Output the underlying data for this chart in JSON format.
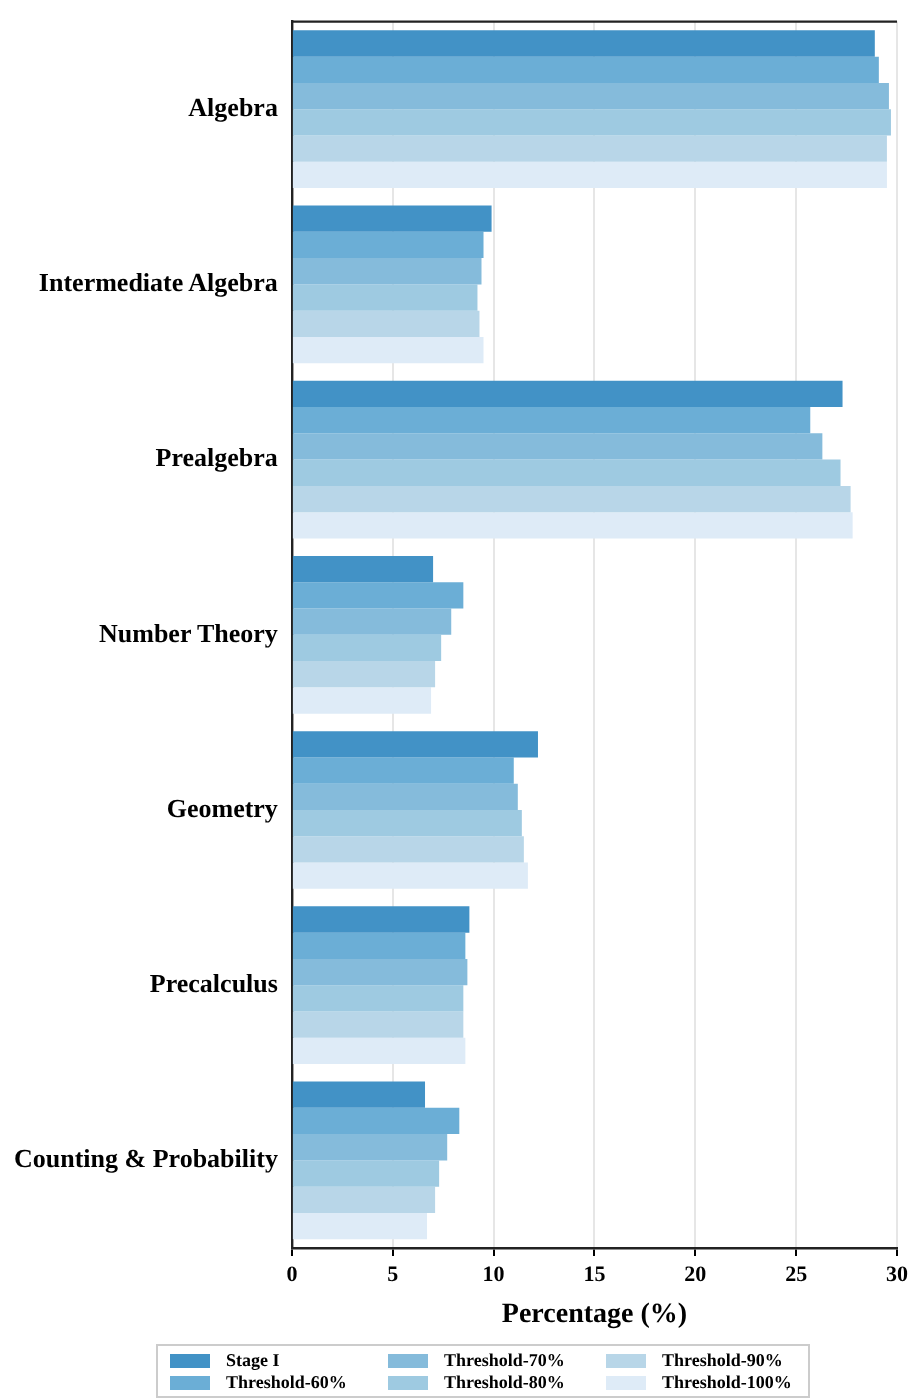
{
  "chart_data": {
    "type": "bar",
    "orientation": "horizontal",
    "xlabel": "Percentage (%)",
    "categories": [
      "Algebra",
      "Intermediate Algebra",
      "Prealgebra",
      "Number Theory",
      "Geometry",
      "Precalculus",
      "Counting & Probability"
    ],
    "series": [
      {
        "name": "Stage I",
        "color": "#4292c6",
        "values": [
          28.9,
          9.9,
          27.3,
          7.0,
          12.2,
          8.8,
          6.6
        ]
      },
      {
        "name": "Threshold-60%",
        "color": "#6baed6",
        "values": [
          29.1,
          9.5,
          25.7,
          8.5,
          11.0,
          8.6,
          8.3
        ]
      },
      {
        "name": "Threshold-70%",
        "color": "#85bbdb",
        "values": [
          29.6,
          9.4,
          26.3,
          7.9,
          11.2,
          8.7,
          7.7
        ]
      },
      {
        "name": "Threshold-80%",
        "color": "#9ecae1",
        "values": [
          29.7,
          9.2,
          27.2,
          7.4,
          11.4,
          8.5,
          7.3
        ]
      },
      {
        "name": "Threshold-90%",
        "color": "#b8d6e8",
        "values": [
          29.5,
          9.3,
          27.7,
          7.1,
          11.5,
          8.5,
          7.1
        ]
      },
      {
        "name": "Threshold-100%",
        "color": "#deebf7",
        "values": [
          29.5,
          9.5,
          27.8,
          6.9,
          11.7,
          8.6,
          6.7
        ]
      }
    ],
    "xlim": [
      0,
      30
    ],
    "xticks": [
      0,
      5,
      10,
      15,
      20,
      25,
      30
    ],
    "grid": "x",
    "legend": "bottom"
  }
}
